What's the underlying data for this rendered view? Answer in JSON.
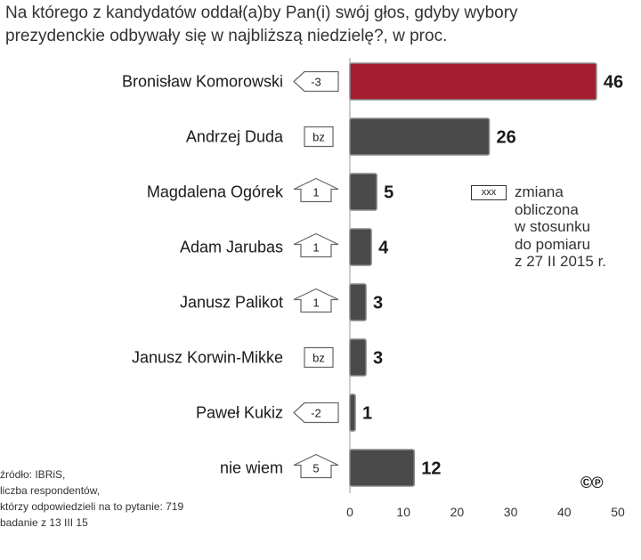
{
  "chart_data": {
    "type": "bar",
    "orientation": "horizontal",
    "title": "Na którego z kandydatów oddał(a)by Pan(i) swój głos, gdyby wybory prezydenckie odbywały się w najbliższą niedzielę?, w proc.",
    "categories": [
      "Bronisław Komorowski",
      "Andrzej Duda",
      "Magdalena Ogórek",
      "Adam Jarubas",
      "Janusz Palikot",
      "Janusz Korwin-Mikke",
      "Paweł Kukiz",
      "nie wiem"
    ],
    "values": [
      46,
      26,
      5,
      4,
      3,
      3,
      1,
      12
    ],
    "changes": [
      "-3",
      "bz",
      "1",
      "1",
      "1",
      "bz",
      "-2",
      "5"
    ],
    "change_direction": [
      "down",
      "none",
      "up",
      "up",
      "up",
      "none",
      "down",
      "up"
    ],
    "xlim": [
      0,
      50
    ],
    "xticks": [
      "0",
      "10",
      "20",
      "30",
      "40",
      "50"
    ],
    "colors": {
      "highlight": "#a31f2f",
      "default": "#4a4a4a"
    },
    "highlight_index": 0
  },
  "legend": {
    "box_label": "xxx",
    "note": "zmiana\nobliczona\nw stosunku\ndo pomiaru\nz 27 II 2015 r."
  },
  "source": {
    "text": "źródło: IBRiS,\nliczba respondentów,\nktórzy odpowiedzieli na to pytanie: 719\nbadanie z 13 III 15"
  },
  "license_mark": "©℗"
}
